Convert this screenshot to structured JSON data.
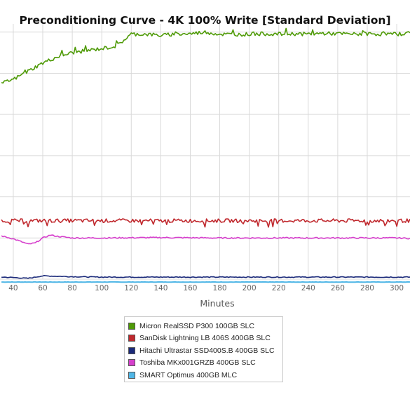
{
  "chart_data": {
    "type": "line",
    "title": "Preconditioning Curve - 4K 100% Write [Standard Deviation]",
    "xlabel": "Minutes",
    "ylabel": "",
    "xlim": [
      31,
      309
    ],
    "ylim": [
      0,
      6.2
    ],
    "x_ticks": [
      40,
      60,
      80,
      100,
      120,
      140,
      160,
      180,
      200,
      220,
      240,
      260,
      280,
      300
    ],
    "x_tick_labels": [
      "40",
      "60",
      "80",
      "100",
      "120",
      "140",
      "160",
      "180",
      "200",
      "220",
      "240",
      "260",
      "280",
      "300"
    ],
    "y_grid": [
      0,
      1,
      2,
      3,
      4,
      5,
      6
    ],
    "grid": true,
    "legend_position": "bottom",
    "series": [
      {
        "name": "Micron RealSSD P300 100GB SLC",
        "color": "#4e9a06",
        "x": [
          32,
          40,
          50,
          60,
          70,
          80,
          90,
          100,
          110,
          120,
          130,
          140,
          150,
          160,
          170,
          180,
          190,
          200,
          210,
          220,
          230,
          240,
          250,
          260,
          270,
          280,
          290,
          300,
          309
        ],
        "y": [
          4.75,
          4.85,
          5.05,
          5.25,
          5.4,
          5.5,
          5.55,
          5.6,
          5.66,
          5.95,
          5.95,
          5.92,
          5.95,
          5.96,
          6.0,
          5.95,
          5.94,
          5.95,
          5.96,
          5.95,
          5.96,
          5.95,
          5.97,
          5.96,
          5.95,
          5.96,
          5.95,
          5.95,
          5.98
        ],
        "noise": 0.045
      },
      {
        "name": "SanDisk Lightning LB 406S 400GB SLC",
        "color": "#c0282d",
        "x": [
          32,
          60,
          100,
          140,
          180,
          220,
          260,
          300,
          309
        ],
        "y": [
          1.42,
          1.42,
          1.42,
          1.42,
          1.42,
          1.42,
          1.42,
          1.42,
          1.42
        ],
        "noise": 0.045
      },
      {
        "name": "Hitachi Ultrastar SSD400S.B 400GB SLC",
        "color": "#1b2a7a",
        "x": [
          32,
          40,
          50,
          60,
          70,
          80,
          100,
          140,
          180,
          220,
          260,
          300,
          309
        ],
        "y": [
          0.05,
          0.04,
          0.02,
          0.08,
          0.07,
          0.06,
          0.05,
          0.05,
          0.05,
          0.05,
          0.05,
          0.05,
          0.05
        ],
        "noise": 0.01
      },
      {
        "name": "Toshiba MKx001GRZB 400GB SLC",
        "color": "#d63fcc",
        "x": [
          32,
          40,
          50,
          55,
          60,
          65,
          70,
          80,
          100,
          140,
          180,
          220,
          260,
          300,
          309
        ],
        "y": [
          1.05,
          0.98,
          0.85,
          0.88,
          1.0,
          1.07,
          1.04,
          1.0,
          1.0,
          1.01,
          1.0,
          1.0,
          1.0,
          1.0,
          0.99
        ],
        "noise": 0.015
      },
      {
        "name": "SMART Optimus 400GB MLC",
        "color": "#4fb6e6",
        "x": [
          32,
          100,
          200,
          309
        ],
        "y": [
          -0.07,
          -0.07,
          -0.07,
          -0.07
        ],
        "noise": 0.004
      }
    ]
  }
}
